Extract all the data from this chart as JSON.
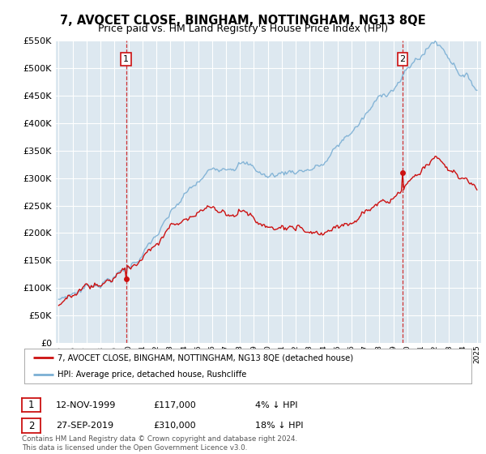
{
  "title": "7, AVOCET CLOSE, BINGHAM, NOTTINGHAM, NG13 8QE",
  "subtitle": "Price paid vs. HM Land Registry's House Price Index (HPI)",
  "ylim": [
    0,
    550000
  ],
  "yticks": [
    0,
    50000,
    100000,
    150000,
    200000,
    250000,
    300000,
    350000,
    400000,
    450000,
    500000,
    550000
  ],
  "background_color": "#ffffff",
  "plot_bg_color": "#dde8f0",
  "grid_color": "#ffffff",
  "hpi_color": "#7bafd4",
  "price_color": "#cc1111",
  "sale1_year": 1999.87,
  "sale1_price": 117000,
  "sale1_date": "12-NOV-1999",
  "sale1_pct": "4%",
  "sale2_year": 2019.74,
  "sale2_price": 310000,
  "sale2_date": "27-SEP-2019",
  "sale2_pct": "18%",
  "legend_price_label": "7, AVOCET CLOSE, BINGHAM, NOTTINGHAM, NG13 8QE (detached house)",
  "legend_hpi_label": "HPI: Average price, detached house, Rushcliffe",
  "footer": "Contains HM Land Registry data © Crown copyright and database right 2024.\nThis data is licensed under the Open Government Licence v3.0.",
  "xstart": 1995,
  "xend": 2025
}
